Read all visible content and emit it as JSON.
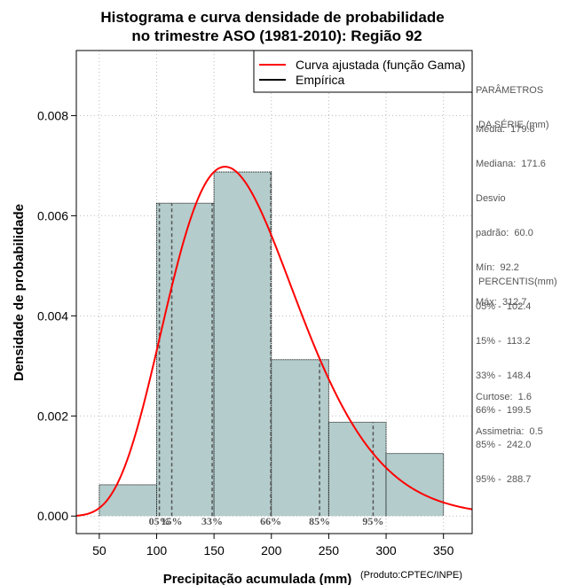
{
  "chart_data": {
    "type": "bar",
    "title_line1": "Histograma e curva densidade de probabilidade",
    "title_line2": "no trimestre ASO (1981-2010): Região 92",
    "xlabel": "Precipitação acumulada (mm)",
    "ylabel": "Densidade de probabilidade",
    "credit": "(Produto:CPTEC/INPE)",
    "xlim": [
      30,
      375
    ],
    "ylim": [
      -0.00035,
      0.0093
    ],
    "x_ticks": [
      50,
      100,
      150,
      200,
      250,
      300,
      350
    ],
    "x_tick_labels": [
      "50",
      "100",
      "150",
      "200",
      "250",
      "300",
      "350"
    ],
    "y_ticks": [
      0,
      0.002,
      0.004,
      0.006,
      0.008
    ],
    "y_tick_labels": [
      "0.000",
      "0.002",
      "0.004",
      "0.006",
      "0.008"
    ],
    "bins": [
      {
        "from": 50,
        "to": 100,
        "density": 0.000625
      },
      {
        "from": 100,
        "to": 150,
        "density": 0.00625
      },
      {
        "from": 150,
        "to": 200,
        "density": 0.006875
      },
      {
        "from": 200,
        "to": 250,
        "density": 0.003125
      },
      {
        "from": 250,
        "to": 300,
        "density": 0.001875
      },
      {
        "from": 300,
        "to": 350,
        "density": 0.00125
      }
    ],
    "gamma_curve": {
      "shape": 8.96,
      "scale": 20.05
    },
    "percentile_lines": [
      {
        "label": "05%",
        "value": 102.4
      },
      {
        "label": "15%",
        "value": 113.2
      },
      {
        "label": "33%",
        "value": 148.4
      },
      {
        "label": "66%",
        "value": 199.5
      },
      {
        "label": "85%",
        "value": 242.0
      },
      {
        "label": "95%",
        "value": 288.7
      }
    ],
    "legend": {
      "position": "top-right",
      "entries": [
        {
          "label": "Curva ajustada (função Gama)",
          "color": "#ff0000"
        },
        {
          "label": "Empírica",
          "color": "#000000"
        }
      ]
    },
    "colors": {
      "bar_fill": "#b4cccc",
      "curve": "#ff0000",
      "grid": "#bbbbbb",
      "percentile": "#555555"
    }
  },
  "side_panel": {
    "params_title_1": "PARÂMETROS",
    "params_title_2": " DA SÉRIE (mm)",
    "stats": [
      "Média:  179.6",
      "Mediana:  171.6",
      "Desvio",
      "padrão:  60.0",
      "Mín:  92.2",
      "Máx:  312.7"
    ],
    "percentis_title": " PERCENTIS(mm)",
    "percentis": [
      "05% -  102.4",
      "15% -  113.2",
      "33% -  148.4",
      "66% -  199.5",
      "85% -  242.0",
      "95% -  288.7"
    ],
    "curtose": "Curtose:  1.6",
    "assimetria": "Assimetria:  0.5"
  }
}
